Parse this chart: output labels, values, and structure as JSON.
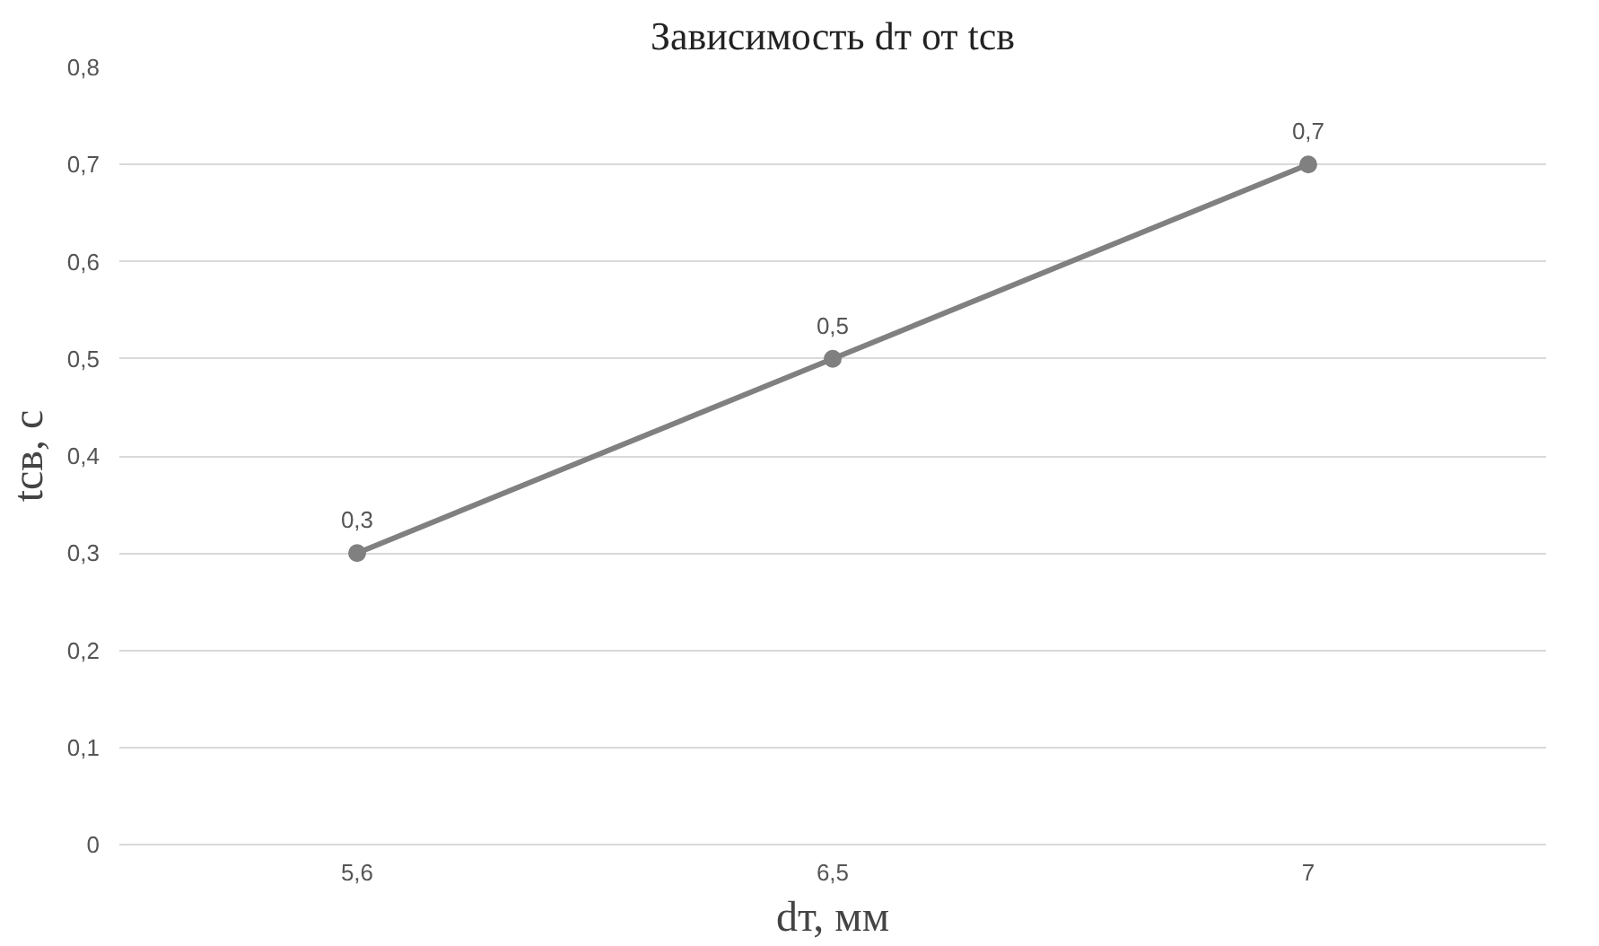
{
  "chart_data": {
    "type": "line",
    "title": "Зависимость dт от tсв",
    "xlabel": "dт, мм",
    "ylabel": "tсв, с",
    "categories": [
      "5,6",
      "6,5",
      "7"
    ],
    "series": [
      {
        "color": "#808080",
        "values": [
          0.3,
          0.5,
          0.7
        ],
        "value_labels": [
          "0,3",
          "0,5",
          "0,7"
        ]
      }
    ],
    "ylim": [
      0,
      0.8
    ],
    "yticks": [
      {
        "value": 0,
        "label": "0"
      },
      {
        "value": 0.1,
        "label": "0,1"
      },
      {
        "value": 0.2,
        "label": "0,2"
      },
      {
        "value": 0.3,
        "label": "0,3"
      },
      {
        "value": 0.4,
        "label": "0,4"
      },
      {
        "value": 0.5,
        "label": "0,5"
      },
      {
        "value": 0.6,
        "label": "0,6"
      },
      {
        "value": 0.7,
        "label": "0,7"
      },
      {
        "value": 0.8,
        "label": "0,8"
      }
    ],
    "grid": "y",
    "marker": "circle",
    "line_style": "solid"
  }
}
